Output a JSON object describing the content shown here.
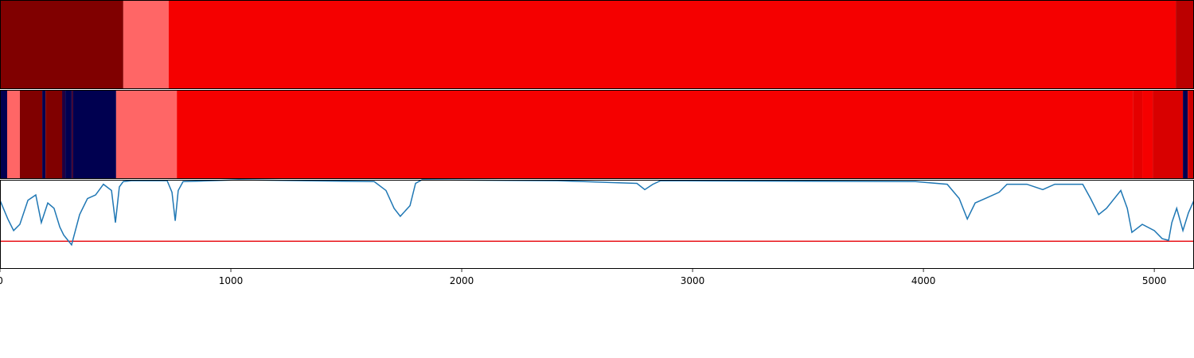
{
  "chart_data": [
    {
      "type": "segments",
      "xlim": [
        0,
        5172
      ],
      "segments": [
        {
          "start": 0,
          "end": 534,
          "color": "#800000"
        },
        {
          "start": 534,
          "end": 731,
          "color": "#ff6666"
        },
        {
          "start": 731,
          "end": 5093,
          "color": "#f50000"
        },
        {
          "start": 5093,
          "end": 5172,
          "color": "#bb0000"
        }
      ]
    },
    {
      "type": "segments",
      "xlim": [
        0,
        5172
      ],
      "segments": [
        {
          "start": 0,
          "end": 31,
          "color": "#000050"
        },
        {
          "start": 31,
          "end": 86,
          "color": "#ff6666"
        },
        {
          "start": 86,
          "end": 183,
          "color": "#800000"
        },
        {
          "start": 183,
          "end": 197,
          "color": "#000050"
        },
        {
          "start": 197,
          "end": 269,
          "color": "#800000"
        },
        {
          "start": 269,
          "end": 283,
          "color": "#200040"
        },
        {
          "start": 283,
          "end": 310,
          "color": "#000050"
        },
        {
          "start": 310,
          "end": 317,
          "color": "#400030"
        },
        {
          "start": 317,
          "end": 503,
          "color": "#000050"
        },
        {
          "start": 503,
          "end": 766,
          "color": "#ff6666"
        },
        {
          "start": 766,
          "end": 4907,
          "color": "#f50000"
        },
        {
          "start": 4907,
          "end": 4948,
          "color": "#e50000"
        },
        {
          "start": 4948,
          "end": 4993,
          "color": "#f50000"
        },
        {
          "start": 4993,
          "end": 5124,
          "color": "#d80000"
        },
        {
          "start": 5124,
          "end": 5145,
          "color": "#000050"
        },
        {
          "start": 5145,
          "end": 5172,
          "color": "#cc0000"
        }
      ]
    },
    {
      "type": "line",
      "xlim": [
        0,
        5172
      ],
      "ylim": [
        0,
        1
      ],
      "color": "#1f77b4",
      "xticks": [
        0,
        1000,
        2000,
        3000,
        4000,
        5000
      ],
      "threshold": 0.31,
      "threshold_color": "#e8141a",
      "x": [
        0,
        34,
        59,
        86,
        121,
        155,
        179,
        207,
        234,
        259,
        276,
        310,
        345,
        379,
        414,
        448,
        483,
        500,
        517,
        534,
        569,
        724,
        745,
        759,
        772,
        793,
        1034,
        1621,
        1672,
        1707,
        1734,
        1776,
        1800,
        1828,
        2414,
        2759,
        2793,
        2828,
        2862,
        3966,
        4103,
        4155,
        4190,
        4224,
        4276,
        4328,
        4362,
        4448,
        4517,
        4569,
        4690,
        4724,
        4759,
        4793,
        4855,
        4883,
        4903,
        4948,
        5000,
        5034,
        5062,
        5076,
        5097,
        5124,
        5148,
        5172
      ],
      "values": [
        0.77,
        0.56,
        0.43,
        0.5,
        0.77,
        0.83,
        0.52,
        0.74,
        0.68,
        0.47,
        0.38,
        0.27,
        0.61,
        0.79,
        0.83,
        0.95,
        0.88,
        0.52,
        0.92,
        0.98,
        0.99,
        0.99,
        0.86,
        0.54,
        0.88,
        0.98,
        1.0,
        0.98,
        0.88,
        0.68,
        0.59,
        0.71,
        0.96,
        1.0,
        0.99,
        0.96,
        0.89,
        0.95,
        0.99,
        0.98,
        0.95,
        0.79,
        0.56,
        0.74,
        0.8,
        0.86,
        0.95,
        0.95,
        0.89,
        0.95,
        0.95,
        0.79,
        0.61,
        0.68,
        0.88,
        0.68,
        0.41,
        0.5,
        0.43,
        0.34,
        0.32,
        0.52,
        0.68,
        0.43,
        0.63,
        0.77
      ]
    }
  ]
}
